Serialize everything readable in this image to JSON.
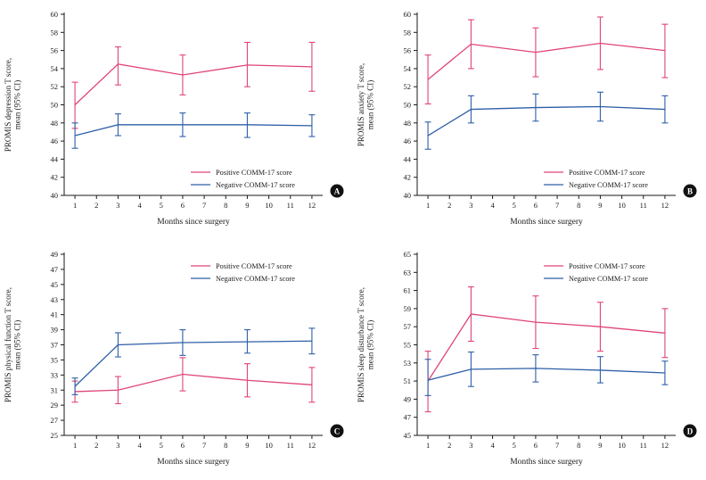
{
  "figure": {
    "background": "#ffffff",
    "series_colors": {
      "positive": "#df4576",
      "negative": "#2e5fa8"
    },
    "badge_color": "#111111",
    "axis_color": "#1a1a1a"
  },
  "chart_data": [
    {
      "type": "line",
      "panel_label": "A",
      "ylabel_lines": [
        "PROMIS depression T score,",
        "mean (95% CI)"
      ],
      "xlabel": "Months since surgery",
      "x": [
        1,
        3,
        6,
        9,
        12
      ],
      "xticks": [
        1,
        2,
        3,
        4,
        5,
        6,
        7,
        8,
        9,
        10,
        11,
        12
      ],
      "ylim": [
        40,
        60
      ],
      "ytick_step": 2,
      "legend_position": "bottom-right",
      "series": [
        {
          "name": "Positive COMM-17 score",
          "color_key": "positive",
          "means": [
            50.0,
            54.5,
            53.3,
            54.4,
            54.2
          ],
          "ci_low": [
            47.4,
            52.2,
            51.1,
            52.0,
            51.5
          ],
          "ci_high": [
            52.5,
            56.4,
            55.5,
            56.9,
            56.9
          ]
        },
        {
          "name": "Negative COMM-17 score",
          "color_key": "negative",
          "means": [
            46.6,
            47.8,
            47.8,
            47.8,
            47.7
          ],
          "ci_low": [
            45.2,
            46.6,
            46.5,
            46.4,
            46.5
          ],
          "ci_high": [
            48.0,
            49.0,
            49.1,
            49.1,
            48.9
          ]
        }
      ]
    },
    {
      "type": "line",
      "panel_label": "B",
      "ylabel_lines": [
        "PROMIS anxiety T score,",
        "mean (95% CI)"
      ],
      "xlabel": "Months since surgery",
      "x": [
        1,
        3,
        6,
        9,
        12
      ],
      "xticks": [
        1,
        2,
        3,
        4,
        5,
        6,
        7,
        8,
        9,
        10,
        11,
        12
      ],
      "ylim": [
        40,
        60
      ],
      "ytick_step": 2,
      "legend_position": "bottom-right",
      "series": [
        {
          "name": "Positive COMM-17 score",
          "color_key": "positive",
          "means": [
            52.8,
            56.7,
            55.8,
            56.8,
            56.0
          ],
          "ci_low": [
            50.1,
            54.0,
            53.1,
            53.9,
            53.0
          ],
          "ci_high": [
            55.5,
            59.4,
            58.5,
            59.7,
            58.9
          ]
        },
        {
          "name": "Negative COMM-17 score",
          "color_key": "negative",
          "means": [
            46.6,
            49.5,
            49.7,
            49.8,
            49.5
          ],
          "ci_low": [
            45.1,
            48.0,
            48.2,
            48.2,
            48.0
          ],
          "ci_high": [
            48.1,
            51.0,
            51.2,
            51.4,
            51.0
          ]
        }
      ]
    },
    {
      "type": "line",
      "panel_label": "C",
      "ylabel_lines": [
        "PROMIS physical function T score,",
        "mean (95% CI)"
      ],
      "xlabel": "Months since surgery",
      "x": [
        1,
        3,
        6,
        9,
        12
      ],
      "xticks": [
        1,
        2,
        3,
        4,
        5,
        6,
        7,
        8,
        9,
        10,
        11,
        12
      ],
      "ylim": [
        25,
        49
      ],
      "ytick_step": 2,
      "legend_position": "top-right",
      "series": [
        {
          "name": "Positive COMM-17 score",
          "color_key": "positive",
          "means": [
            30.8,
            31.0,
            33.1,
            32.3,
            31.7
          ],
          "ci_low": [
            29.4,
            29.2,
            30.9,
            30.1,
            29.4
          ],
          "ci_high": [
            32.2,
            32.8,
            35.3,
            34.5,
            34.0
          ]
        },
        {
          "name": "Negative COMM-17 score",
          "color_key": "negative",
          "means": [
            31.5,
            37.0,
            37.3,
            37.4,
            37.5
          ],
          "ci_low": [
            30.4,
            35.4,
            35.6,
            35.9,
            35.8
          ],
          "ci_high": [
            32.6,
            38.6,
            39.0,
            39.0,
            39.2
          ]
        }
      ]
    },
    {
      "type": "line",
      "panel_label": "D",
      "ylabel_lines": [
        "PROMIS sleep disturbance T score,",
        "mean (95% CI)"
      ],
      "xlabel": "Months since surgery",
      "x": [
        1,
        3,
        6,
        9,
        12
      ],
      "xticks": [
        1,
        2,
        3,
        4,
        5,
        6,
        7,
        8,
        9,
        10,
        11,
        12
      ],
      "ylim": [
        45,
        65
      ],
      "ytick_step": 2,
      "legend_position": "top-right",
      "series": [
        {
          "name": "Positive COMM-17 score",
          "color_key": "positive",
          "means": [
            51.0,
            58.4,
            57.5,
            57.0,
            56.3
          ],
          "ci_low": [
            47.6,
            55.4,
            54.6,
            54.3,
            53.6
          ],
          "ci_high": [
            54.3,
            61.4,
            60.4,
            59.7,
            59.0
          ]
        },
        {
          "name": "Negative COMM-17 score",
          "color_key": "negative",
          "means": [
            51.1,
            52.3,
            52.4,
            52.2,
            51.9
          ],
          "ci_low": [
            49.4,
            50.4,
            50.9,
            50.8,
            50.6
          ],
          "ci_high": [
            53.4,
            54.2,
            53.9,
            53.7,
            53.2
          ]
        }
      ]
    }
  ]
}
